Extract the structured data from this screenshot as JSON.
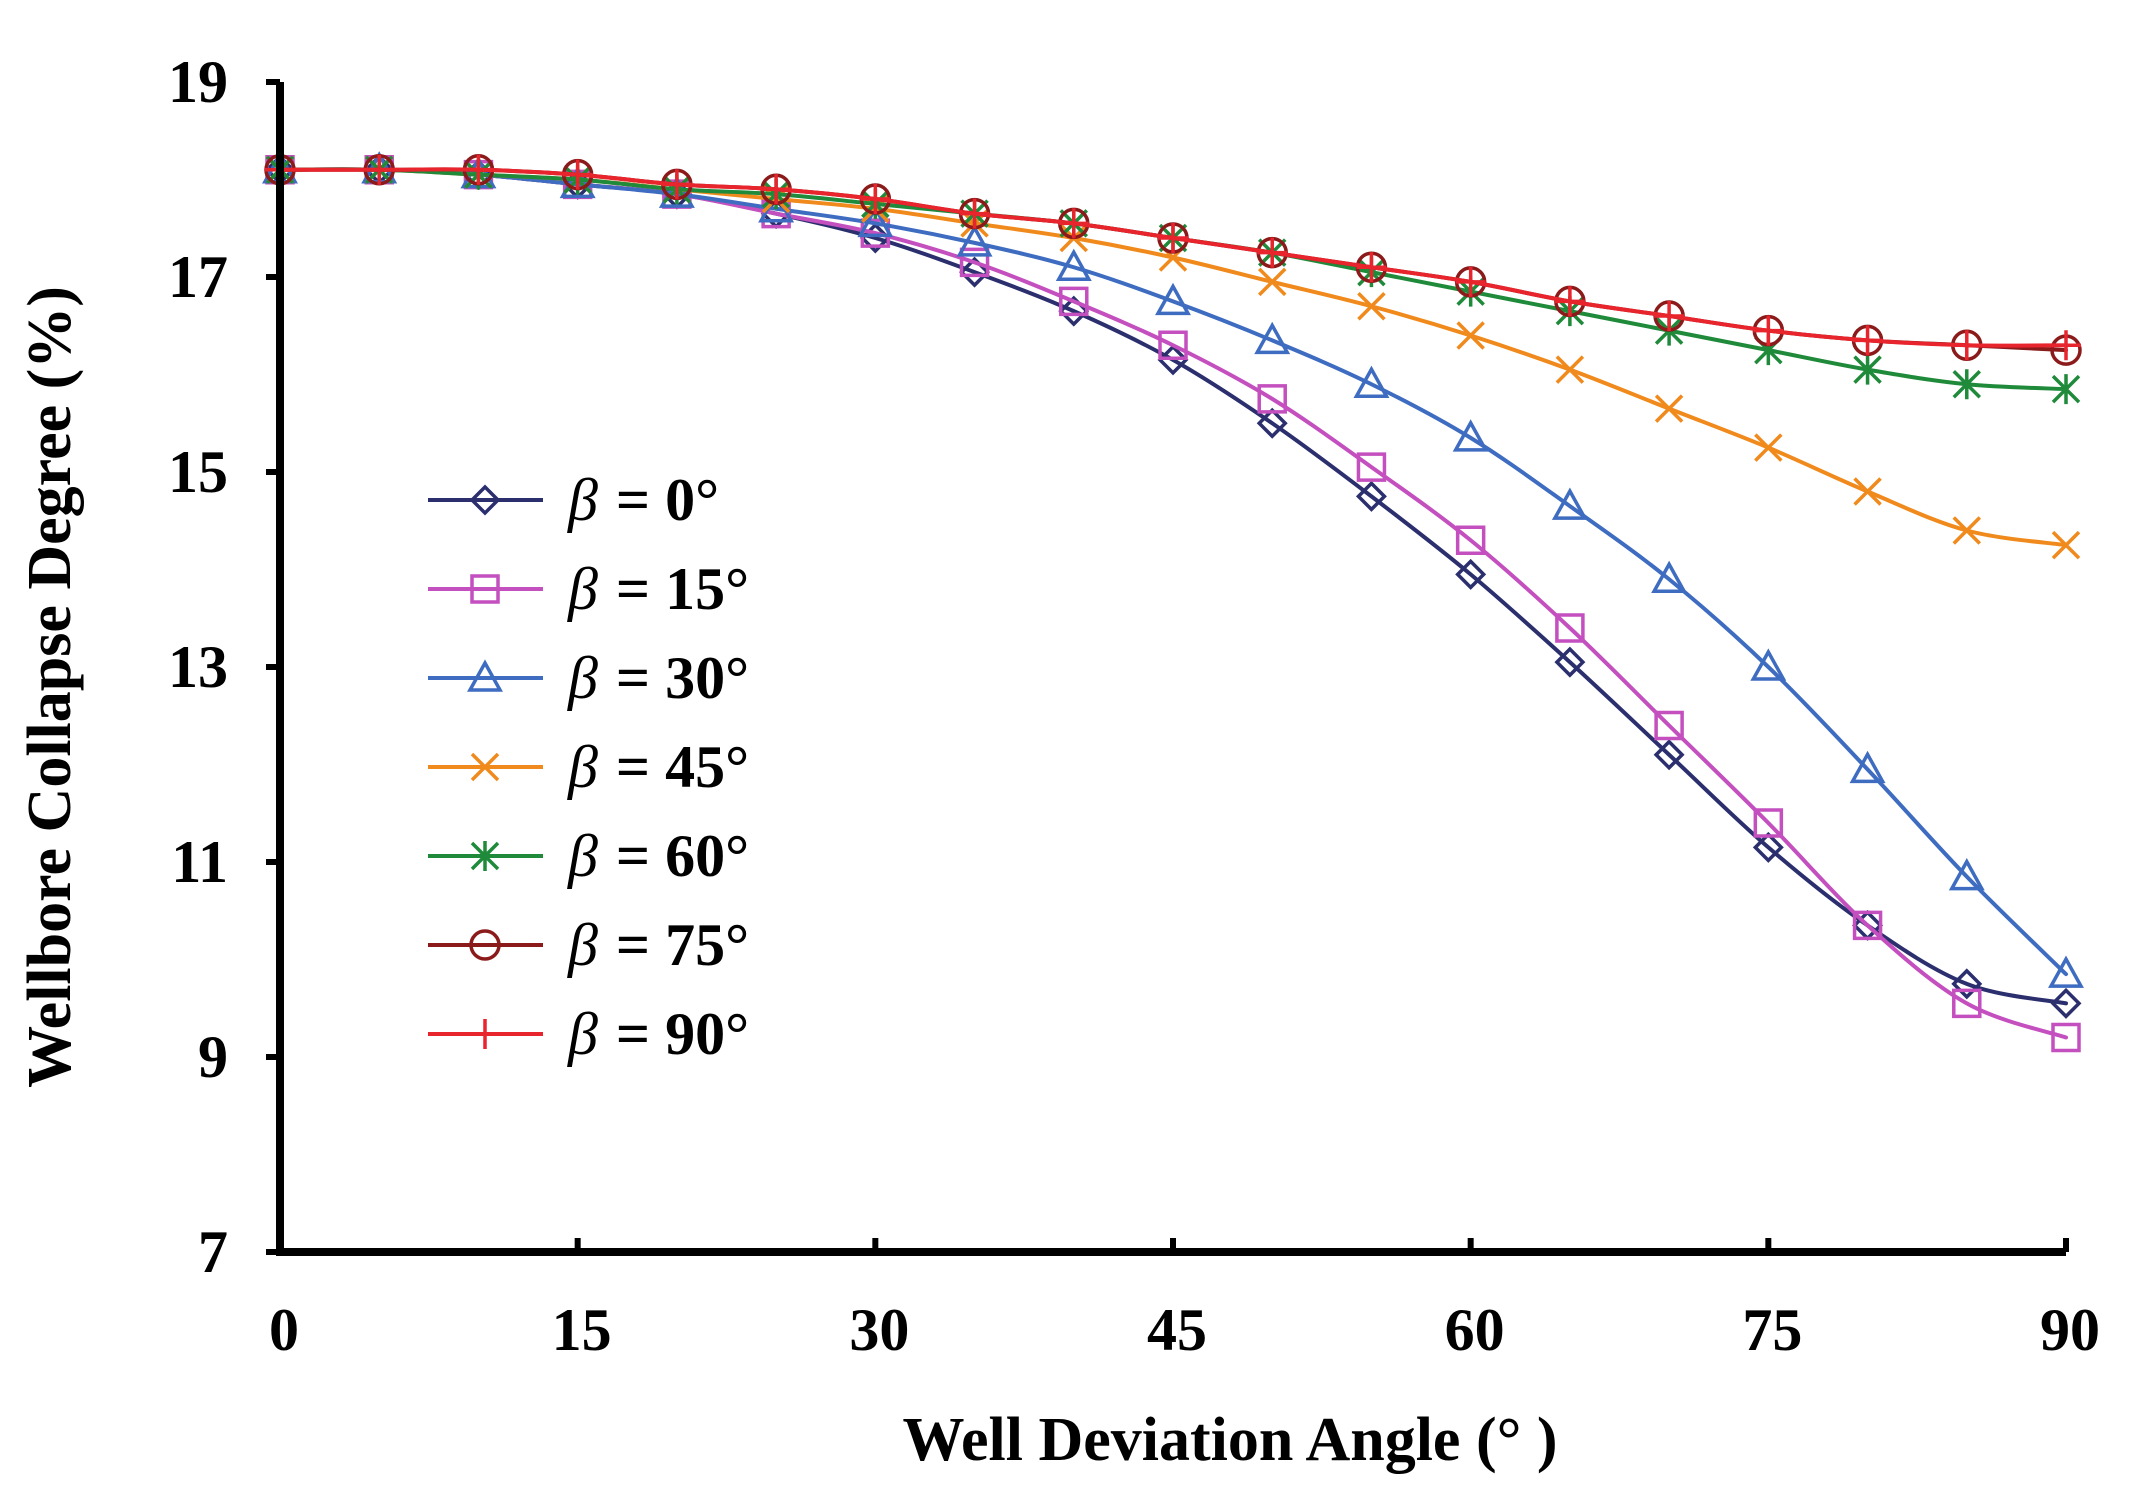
{
  "chart_data": {
    "type": "line",
    "title": "",
    "xlabel": "Well Deviation Angle (°  )",
    "ylabel": "Wellbore Collapse Degree (%)",
    "xlim": [
      0,
      90
    ],
    "ylim": [
      7,
      19
    ],
    "x_ticks": [
      0,
      15,
      30,
      45,
      60,
      75,
      90
    ],
    "y_ticks": [
      7,
      9,
      11,
      13,
      15,
      17,
      19
    ],
    "x_tick_labels": [
      "0",
      "15",
      "30",
      "45",
      "60",
      "75",
      "90"
    ],
    "y_tick_labels": [
      "7",
      "9",
      "11",
      "13",
      "15",
      "17",
      "19"
    ],
    "grid": false,
    "legend_position": "center-left",
    "x": [
      0,
      5,
      10,
      15,
      20,
      25,
      30,
      35,
      40,
      45,
      50,
      55,
      60,
      65,
      70,
      75,
      80,
      85,
      90
    ],
    "series": [
      {
        "name": "β = 0°",
        "beta_symbol": "β",
        "label_rest": "= 0°",
        "color": "#2b2f6e",
        "marker": "diamond",
        "values": [
          18.1,
          18.1,
          18.05,
          17.95,
          17.85,
          17.65,
          17.4,
          17.05,
          16.65,
          16.15,
          15.5,
          14.75,
          13.95,
          13.05,
          12.1,
          11.15,
          10.35,
          9.75,
          9.55
        ]
      },
      {
        "name": "β = 15°",
        "beta_symbol": "β",
        "label_rest": "= 15°",
        "color": "#c44fbf",
        "marker": "square",
        "values": [
          18.1,
          18.1,
          18.05,
          17.95,
          17.85,
          17.65,
          17.45,
          17.15,
          16.75,
          16.3,
          15.75,
          15.05,
          14.3,
          13.4,
          12.4,
          11.4,
          10.35,
          9.55,
          9.2
        ]
      },
      {
        "name": "β = 30°",
        "beta_symbol": "β",
        "label_rest": "= 30°",
        "color": "#3e6cc0",
        "marker": "triangle",
        "values": [
          18.1,
          18.1,
          18.05,
          17.95,
          17.85,
          17.7,
          17.55,
          17.35,
          17.1,
          16.75,
          16.35,
          15.9,
          15.35,
          14.65,
          13.9,
          13.0,
          11.95,
          10.85,
          9.85
        ]
      },
      {
        "name": "β = 45°",
        "beta_symbol": "β",
        "label_rest": "= 45°",
        "color": "#f08a1c",
        "marker": "x",
        "values": [
          18.1,
          18.1,
          18.05,
          18.0,
          17.9,
          17.8,
          17.7,
          17.55,
          17.4,
          17.2,
          16.95,
          16.7,
          16.4,
          16.05,
          15.65,
          15.25,
          14.8,
          14.4,
          14.25
        ]
      },
      {
        "name": "β = 60°",
        "beta_symbol": "β",
        "label_rest": "= 60°",
        "color": "#1f8a3a",
        "marker": "asterisk",
        "values": [
          18.1,
          18.1,
          18.05,
          18.0,
          17.9,
          17.85,
          17.75,
          17.65,
          17.55,
          17.4,
          17.25,
          17.05,
          16.85,
          16.65,
          16.45,
          16.25,
          16.05,
          15.9,
          15.85
        ]
      },
      {
        "name": "β = 75°",
        "beta_symbol": "β",
        "label_rest": "= 75°",
        "color": "#8b1a1a",
        "marker": "circle",
        "values": [
          18.1,
          18.1,
          18.1,
          18.05,
          17.95,
          17.9,
          17.8,
          17.65,
          17.55,
          17.4,
          17.25,
          17.1,
          16.95,
          16.75,
          16.6,
          16.45,
          16.35,
          16.3,
          16.25
        ]
      },
      {
        "name": "β = 90°",
        "beta_symbol": "β",
        "label_rest": "= 90°",
        "color": "#e8242d",
        "marker": "plus",
        "values": [
          18.1,
          18.1,
          18.1,
          18.05,
          17.95,
          17.9,
          17.8,
          17.65,
          17.55,
          17.4,
          17.25,
          17.1,
          16.95,
          16.75,
          16.6,
          16.45,
          16.35,
          16.3,
          16.3
        ]
      }
    ]
  }
}
